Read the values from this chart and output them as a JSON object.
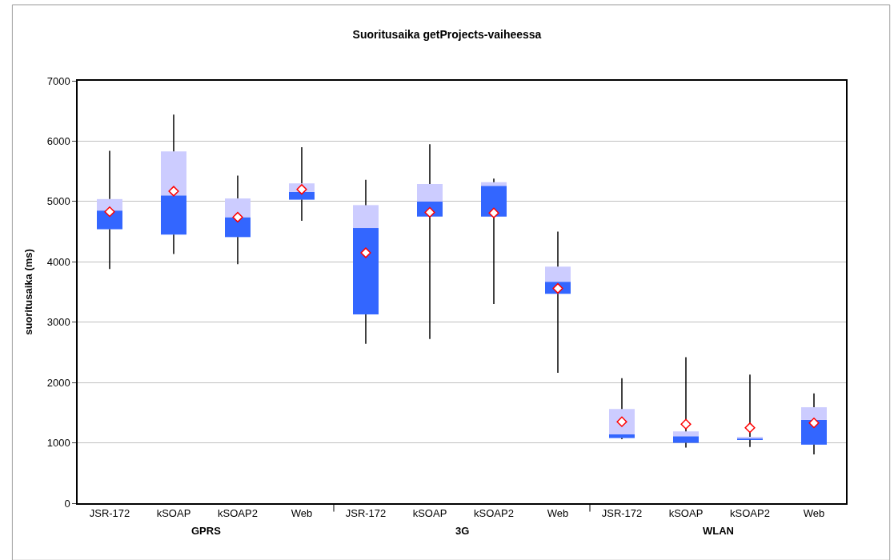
{
  "chart_data": {
    "type": "box",
    "title": "Suoritusaika getProjects-vaiheessa",
    "ylabel": "suoritusaika (ms)",
    "categories": [
      "JSR-172",
      "kSOAP",
      "kSOAP2",
      "Web",
      "JSR-172",
      "kSOAP",
      "kSOAP2",
      "Web",
      "JSR-172",
      "kSOAP",
      "kSOAP2",
      "Web"
    ],
    "boxes": [
      {
        "low": 3880,
        "q1": 4540,
        "median": 4850,
        "q3": 5040,
        "high": 5840,
        "mean": 4830
      },
      {
        "low": 4130,
        "q1": 4450,
        "median": 5100,
        "q3": 5830,
        "high": 6440,
        "mean": 5170
      },
      {
        "low": 3960,
        "q1": 4410,
        "median": 4740,
        "q3": 5050,
        "high": 5430,
        "mean": 4740
      },
      {
        "low": 4680,
        "q1": 5030,
        "median": 5160,
        "q3": 5300,
        "high": 5900,
        "mean": 5200
      },
      {
        "low": 2640,
        "q1": 3130,
        "median": 4560,
        "q3": 4940,
        "high": 5360,
        "mean": 4150
      },
      {
        "low": 2720,
        "q1": 4750,
        "median": 5000,
        "q3": 5290,
        "high": 5950,
        "mean": 4820
      },
      {
        "low": 3300,
        "q1": 4750,
        "median": 5260,
        "q3": 5320,
        "high": 5380,
        "mean": 4810
      },
      {
        "low": 2160,
        "q1": 3470,
        "median": 3670,
        "q3": 3920,
        "high": 4500,
        "mean": 3560
      },
      {
        "low": 1060,
        "q1": 1080,
        "median": 1140,
        "q3": 1560,
        "high": 2070,
        "mean": 1350
      },
      {
        "low": 920,
        "q1": 1000,
        "median": 1110,
        "q3": 1190,
        "high": 2420,
        "mean": 1310
      },
      {
        "low": 930,
        "q1": 1050,
        "median": 1070,
        "q3": 1100,
        "high": 2130,
        "mean": 1250
      },
      {
        "low": 810,
        "q1": 970,
        "median": 1380,
        "q3": 1590,
        "high": 1820,
        "mean": 1330
      }
    ],
    "color": "#3366ff",
    "marker": "diamond",
    "annotations": [
      "GPRS",
      "3G",
      "WLAN"
    ],
    "ylim": [
      0,
      7000
    ],
    "yticks": [
      0,
      1000,
      2000,
      3000,
      4000,
      5000,
      6000,
      7000
    ],
    "grid": "y"
  }
}
